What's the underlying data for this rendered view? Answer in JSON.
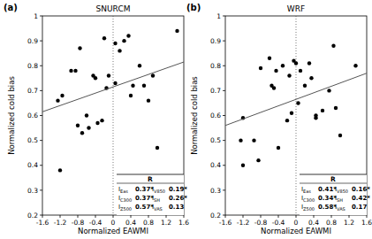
{
  "chart_data": [
    {
      "type": "scatter",
      "panel": "(a)",
      "title": "SNURCM",
      "x_label": "Normalized EAWMI",
      "y_label": "Normalized cold bias",
      "xlim": [
        -1.6,
        1.6
      ],
      "xticks": [
        -1.6,
        -1.2,
        -0.8,
        -0.4,
        0,
        0.4,
        0.8,
        1.2,
        1.6
      ],
      "ylim": [
        0.2,
        1
      ],
      "yticks": [
        0.2,
        0.3,
        0.4,
        0.5,
        0.6,
        0.7,
        0.8,
        0.9,
        1
      ],
      "grid": false,
      "vline": 0,
      "series": [
        {
          "type": "scatter",
          "color": "#000000",
          "marker": "circle",
          "x": [
            -1.2,
            -1.25,
            -1.15,
            -0.95,
            -0.85,
            -0.75,
            -0.8,
            -0.7,
            -0.6,
            -0.55,
            -0.45,
            -0.4,
            -0.35,
            -0.25,
            -0.2,
            -0.15,
            -0.1,
            0.05,
            0.05,
            0.15,
            0.25,
            0.35,
            0.4,
            0.45,
            0.6,
            0.7,
            0.8,
            0.9,
            1.0,
            1.45
          ],
          "values": [
            0.38,
            0.66,
            0.68,
            0.78,
            0.78,
            0.87,
            0.56,
            0.53,
            0.6,
            0.55,
            0.76,
            0.75,
            0.57,
            0.58,
            0.91,
            0.71,
            0.76,
            0.89,
            0.73,
            0.86,
            0.9,
            0.92,
            0.68,
            0.72,
            0.8,
            0.72,
            0.66,
            0.76,
            0.47,
            0.94
          ]
        },
        {
          "type": "line",
          "color": "#555555",
          "line_style": "solid",
          "x": [
            -1.6,
            1.6
          ],
          "values": [
            0.615,
            0.815
          ]
        }
      ],
      "table": {
        "header": "R",
        "rows": [
          [
            {
              "name": "I",
              "sub": "Eas",
              "value": "0.37*"
            },
            {
              "name": "I",
              "sub": "V850",
              "value": "0.19*"
            }
          ],
          [
            {
              "name": "I",
              "sub": "C300",
              "value": "0.37*"
            },
            {
              "name": "I",
              "sub": "SH",
              "value": "0.26*"
            }
          ],
          [
            {
              "name": "I",
              "sub": "Z500",
              "value": "0.57*"
            },
            {
              "name": "I",
              "sub": "VAS",
              "value": "0.13"
            }
          ]
        ]
      }
    },
    {
      "type": "scatter",
      "panel": "(b)",
      "title": "WRF",
      "x_label": "Normalized EAWMI",
      "y_label": "Normalized cold bias",
      "xlim": [
        -1.6,
        1.6
      ],
      "xticks": [
        -1.6,
        -1.2,
        -0.8,
        -0.4,
        0,
        0.4,
        0.8,
        1.2,
        1.6
      ],
      "ylim": [
        0.2,
        1
      ],
      "yticks": [
        0.2,
        0.3,
        0.4,
        0.5,
        0.6,
        0.7,
        0.8,
        0.9,
        1
      ],
      "grid": false,
      "vline": 0,
      "series": [
        {
          "type": "scatter",
          "color": "#000000",
          "marker": "circle",
          "x": [
            -1.25,
            -1.2,
            -1.2,
            -0.95,
            -0.85,
            -0.8,
            -0.6,
            -0.55,
            -0.5,
            -0.45,
            -0.4,
            -0.3,
            -0.2,
            -0.15,
            -0.1,
            -0.05,
            0.0,
            0.05,
            0.1,
            0.2,
            0.3,
            0.35,
            0.45,
            0.45,
            0.6,
            0.75,
            0.85,
            0.9,
            1.0,
            1.35
          ],
          "values": [
            0.5,
            0.4,
            0.59,
            0.5,
            0.42,
            0.79,
            0.83,
            0.72,
            0.71,
            0.78,
            0.47,
            0.8,
            0.58,
            0.76,
            0.61,
            0.82,
            0.81,
            0.65,
            0.78,
            0.72,
            0.81,
            0.75,
            0.59,
            0.6,
            0.62,
            0.7,
            0.88,
            0.63,
            0.52,
            0.8
          ]
        },
        {
          "type": "line",
          "color": "#555555",
          "line_style": "solid",
          "x": [
            -1.6,
            1.6
          ],
          "values": [
            0.56,
            0.77
          ]
        }
      ],
      "table": {
        "header": "R",
        "rows": [
          [
            {
              "name": "I",
              "sub": "Eas",
              "value": "0.41*"
            },
            {
              "name": "I",
              "sub": "V850",
              "value": "0.16*"
            }
          ],
          [
            {
              "name": "I",
              "sub": "C300",
              "value": "0.34*"
            },
            {
              "name": "I",
              "sub": "SH",
              "value": "0.42*"
            }
          ],
          [
            {
              "name": "I",
              "sub": "Z500",
              "value": "0.58*"
            },
            {
              "name": "I",
              "sub": "VAS",
              "value": "0.17"
            }
          ]
        ]
      }
    }
  ]
}
